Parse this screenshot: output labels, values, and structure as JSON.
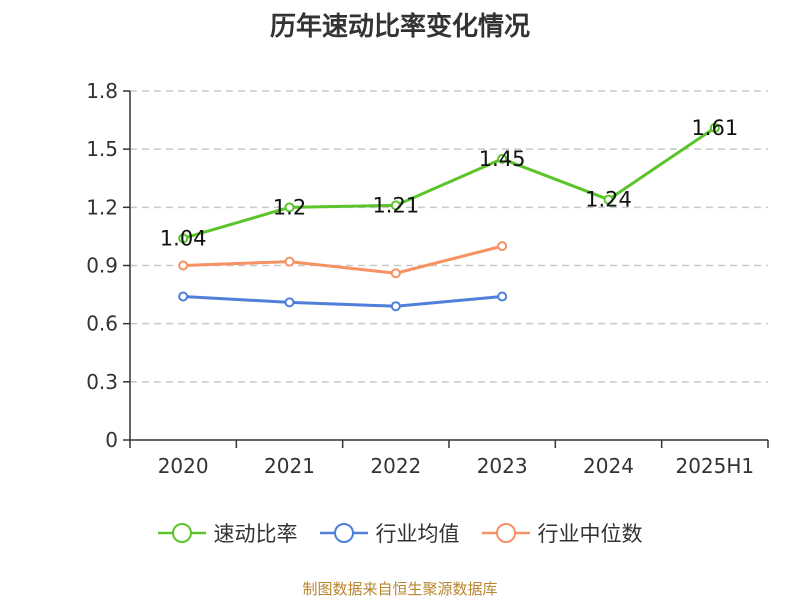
{
  "chart_data": {
    "type": "line",
    "title": "历年速动比率变化情况",
    "categories": [
      "2020",
      "2021",
      "2022",
      "2023",
      "2024",
      "2025H1"
    ],
    "ylim": [
      0,
      1.8
    ],
    "yticks": [
      "0",
      "0.3",
      "0.6",
      "0.9",
      "1.2",
      "1.5",
      "1.8"
    ],
    "grid": true,
    "legend_position": "bottom",
    "series": [
      {
        "name": "速动比率",
        "color": "#5cc42b",
        "values": [
          1.04,
          1.2,
          1.21,
          1.45,
          1.24,
          1.61
        ],
        "labels": [
          "1.04",
          "1.2",
          "1.21",
          "1.45",
          "1.24",
          "1.61"
        ]
      },
      {
        "name": "行业均值",
        "color": "#4f7fd9",
        "values": [
          0.74,
          0.71,
          0.69,
          0.74,
          null,
          null
        ]
      },
      {
        "name": "行业中位数",
        "color": "#f59162",
        "values": [
          0.9,
          0.92,
          0.86,
          1.0,
          null,
          null
        ]
      }
    ]
  },
  "source_text": "制图数据来自恒生聚源数据库"
}
